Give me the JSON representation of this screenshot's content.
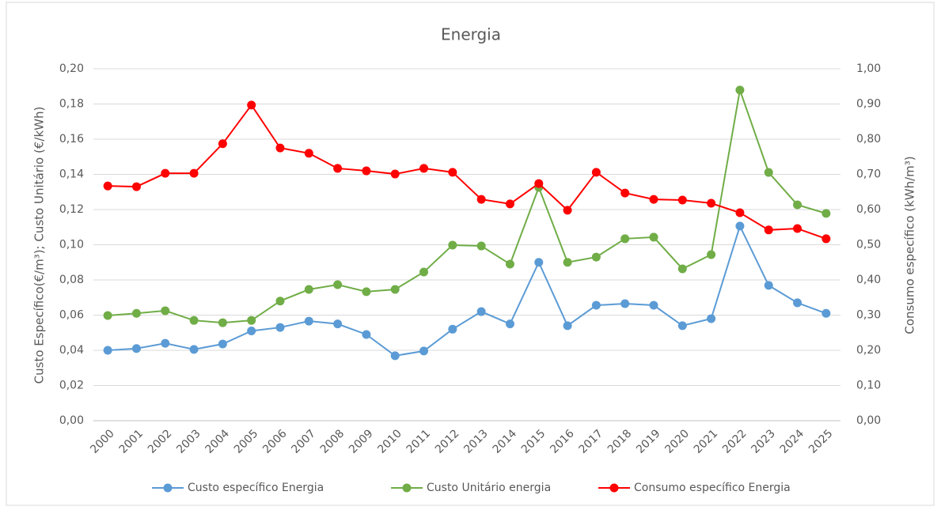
{
  "chart_data": {
    "type": "line",
    "title": "Energia",
    "y_label": "Custo Específico(€/m³); Custo Unitário (€/kWh)",
    "y2_label": "Consumo específico (kWh/m³)",
    "categories": [
      "2000",
      "2001",
      "2002",
      "2003",
      "2004",
      "2005",
      "2006",
      "2007",
      "2008",
      "2009",
      "2010",
      "2011",
      "2012",
      "2013",
      "2014",
      "2015",
      "2016",
      "2017",
      "2018",
      "2019",
      "2020",
      "2021",
      "2022",
      "2023",
      "2024",
      "2025"
    ],
    "ylim": [
      0,
      0.2
    ],
    "yticks": [
      {
        "value": 0,
        "label": "0,00"
      },
      {
        "value": 0.02,
        "label": "0,02"
      },
      {
        "value": 0.04,
        "label": "0,04"
      },
      {
        "value": 0.06,
        "label": "0,06"
      },
      {
        "value": 0.08,
        "label": "0,08"
      },
      {
        "value": 0.1,
        "label": "0,10"
      },
      {
        "value": 0.12,
        "label": "0,12"
      },
      {
        "value": 0.14,
        "label": "0,14"
      },
      {
        "value": 0.16,
        "label": "0,16"
      },
      {
        "value": 0.18,
        "label": "0,18"
      },
      {
        "value": 0.2,
        "label": "0,20"
      }
    ],
    "y2lim": [
      0,
      1
    ],
    "y2ticks": [
      {
        "value": 0,
        "label": "0,00"
      },
      {
        "value": 0.1,
        "label": "0,10"
      },
      {
        "value": 0.2,
        "label": "0,20"
      },
      {
        "value": 0.3,
        "label": "0,30"
      },
      {
        "value": 0.4,
        "label": "0,40"
      },
      {
        "value": 0.5,
        "label": "0,50"
      },
      {
        "value": 0.6,
        "label": "0,60"
      },
      {
        "value": 0.7,
        "label": "0,70"
      },
      {
        "value": 0.8,
        "label": "0,80"
      },
      {
        "value": 0.9,
        "label": "0,90"
      },
      {
        "value": 1,
        "label": "1,00"
      }
    ],
    "grid": true,
    "legend": "bottom",
    "series": [
      {
        "name": "Custo específico Energia",
        "color": "#5b9bd5",
        "values": [
          0.04,
          0.041,
          0.044,
          0.0405,
          0.0436,
          0.051,
          0.053,
          0.0566,
          0.055,
          0.049,
          0.0369,
          0.0396,
          0.052,
          0.062,
          0.055,
          0.09,
          0.054,
          0.0656,
          0.0665,
          0.0656,
          0.054,
          0.058,
          0.1106,
          0.0769,
          0.067,
          0.061
        ]
      },
      {
        "name": "Custo Unitário energia",
        "color": "#70ad47",
        "values": [
          0.0598,
          0.061,
          0.0625,
          0.057,
          0.0557,
          0.057,
          0.068,
          0.0746,
          0.0773,
          0.0733,
          0.0746,
          0.0845,
          0.0998,
          0.0993,
          0.089,
          0.1326,
          0.09,
          0.093,
          0.1034,
          0.1043,
          0.0863,
          0.0944,
          0.1879,
          0.1411,
          0.1227,
          0.1178
        ]
      },
      {
        "name": "Consumo específico Energia",
        "color": "#ff0000",
        "axis": "y2",
        "values": [
          0.667,
          0.665,
          0.703,
          0.703,
          0.787,
          0.897,
          0.775,
          0.76,
          0.717,
          0.71,
          0.701,
          0.717,
          0.706,
          0.629,
          0.616,
          0.674,
          0.598,
          0.706,
          0.647,
          0.629,
          0.627,
          0.618,
          0.591,
          0.542,
          0.546,
          0.517
        ]
      }
    ]
  }
}
